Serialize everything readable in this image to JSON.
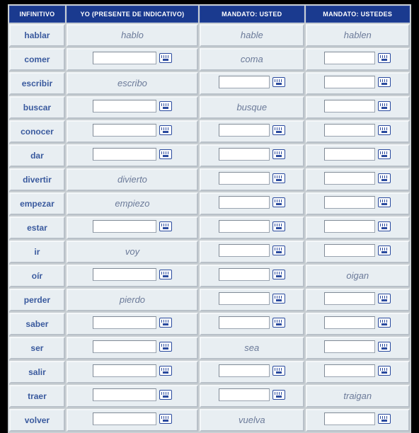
{
  "headers": {
    "infinitivo": "INFINITIVO",
    "yo": "YO (PRESENTE DE INDICATIVO)",
    "usted": "MANDATO: USTED",
    "ustedes": "MANDATO: USTEDES"
  },
  "colors": {
    "header_bg": "#1a3a8f",
    "header_text": "#ffffff",
    "cell_bg": "#e8eef2",
    "infinitive_text": "#3a5a9e",
    "answer_text": "#6b7a99",
    "page_bg": "#000000"
  },
  "rows": [
    {
      "inf": "hablar",
      "yo": {
        "type": "text",
        "value": "hablo"
      },
      "usted": {
        "type": "text",
        "value": "hable"
      },
      "ustedes": {
        "type": "text",
        "value": "hablen"
      }
    },
    {
      "inf": "comer",
      "yo": {
        "type": "input"
      },
      "usted": {
        "type": "text",
        "value": "coma"
      },
      "ustedes": {
        "type": "input"
      }
    },
    {
      "inf": "escribir",
      "yo": {
        "type": "text",
        "value": "escribo"
      },
      "usted": {
        "type": "input"
      },
      "ustedes": {
        "type": "input"
      }
    },
    {
      "inf": "buscar",
      "yo": {
        "type": "input"
      },
      "usted": {
        "type": "text",
        "value": "busque"
      },
      "ustedes": {
        "type": "input"
      }
    },
    {
      "inf": "conocer",
      "yo": {
        "type": "input"
      },
      "usted": {
        "type": "input"
      },
      "ustedes": {
        "type": "input"
      }
    },
    {
      "inf": "dar",
      "yo": {
        "type": "input"
      },
      "usted": {
        "type": "input"
      },
      "ustedes": {
        "type": "input"
      }
    },
    {
      "inf": "divertir",
      "yo": {
        "type": "text",
        "value": "divierto"
      },
      "usted": {
        "type": "input"
      },
      "ustedes": {
        "type": "input"
      }
    },
    {
      "inf": "empezar",
      "yo": {
        "type": "text",
        "value": "empiezo"
      },
      "usted": {
        "type": "input"
      },
      "ustedes": {
        "type": "input"
      }
    },
    {
      "inf": "estar",
      "yo": {
        "type": "input"
      },
      "usted": {
        "type": "input"
      },
      "ustedes": {
        "type": "input"
      }
    },
    {
      "inf": "ir",
      "yo": {
        "type": "text",
        "value": "voy"
      },
      "usted": {
        "type": "input"
      },
      "ustedes": {
        "type": "input"
      }
    },
    {
      "inf": "oír",
      "yo": {
        "type": "input"
      },
      "usted": {
        "type": "input"
      },
      "ustedes": {
        "type": "text",
        "value": "oigan"
      }
    },
    {
      "inf": "perder",
      "yo": {
        "type": "text",
        "value": "pierdo"
      },
      "usted": {
        "type": "input"
      },
      "ustedes": {
        "type": "input"
      }
    },
    {
      "inf": "saber",
      "yo": {
        "type": "input"
      },
      "usted": {
        "type": "input"
      },
      "ustedes": {
        "type": "input"
      }
    },
    {
      "inf": "ser",
      "yo": {
        "type": "input"
      },
      "usted": {
        "type": "text",
        "value": "sea"
      },
      "ustedes": {
        "type": "input"
      }
    },
    {
      "inf": "salir",
      "yo": {
        "type": "input"
      },
      "usted": {
        "type": "input"
      },
      "ustedes": {
        "type": "input"
      }
    },
    {
      "inf": "traer",
      "yo": {
        "type": "input"
      },
      "usted": {
        "type": "input"
      },
      "ustedes": {
        "type": "text",
        "value": "traigan"
      }
    },
    {
      "inf": "volver",
      "yo": {
        "type": "input"
      },
      "usted": {
        "type": "text",
        "value": "vuelva"
      },
      "ustedes": {
        "type": "input"
      }
    }
  ]
}
